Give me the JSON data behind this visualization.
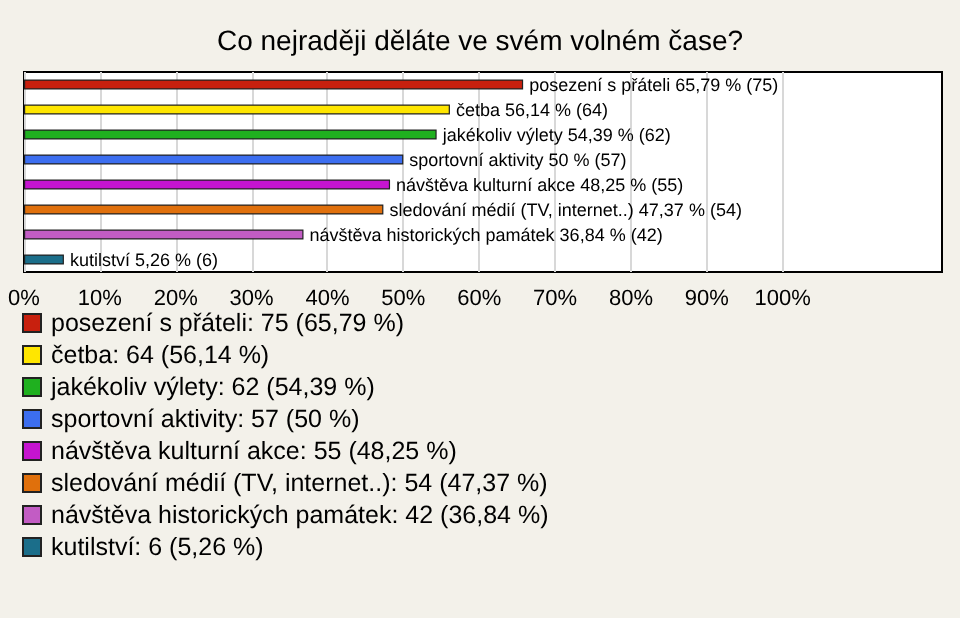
{
  "chart_data": {
    "type": "bar",
    "orientation": "horizontal",
    "stacked": true,
    "title": "Co nejraději děláte ve svém volném čase?",
    "categories": [
      null,
      null,
      null,
      null,
      null,
      null,
      null,
      null
    ],
    "series": [
      {
        "name": "posezení s přáteli: 75 (65,79 %)",
        "color": "#c8200e",
        "values": [
          65.79,
          null,
          null,
          null,
          null,
          null,
          null,
          null
        ],
        "value_labels": [
          "posezení s přáteli 65,79 % (75)",
          null,
          null,
          null,
          null,
          null,
          null,
          null
        ]
      },
      {
        "name": "četba: 64 (56,14 %)",
        "color": "#ffe600",
        "values": [
          null,
          56.14,
          null,
          null,
          null,
          null,
          null,
          null
        ],
        "value_labels": [
          null,
          "četba 56,14 % (64)",
          null,
          null,
          null,
          null,
          null,
          null
        ]
      },
      {
        "name": "jakékoliv výlety: 62 (54,39 %)",
        "color": "#1fb01f",
        "values": [
          null,
          null,
          54.39,
          null,
          null,
          null,
          null,
          null
        ],
        "value_labels": [
          null,
          null,
          "jakékoliv výlety 54,39 % (62)",
          null,
          null,
          null,
          null,
          null
        ]
      },
      {
        "name": "sportovní aktivity: 57 (50 %)",
        "color": "#3c6ef0",
        "values": [
          null,
          null,
          null,
          50,
          null,
          null,
          null,
          null
        ],
        "value_labels": [
          null,
          null,
          null,
          "sportovní aktivity 50 % (57)",
          null,
          null,
          null,
          null
        ]
      },
      {
        "name": "návštěva kulturní akce: 55 (48,25 %)",
        "color": "#c514d0",
        "values": [
          null,
          null,
          null,
          null,
          48.25,
          null,
          null,
          null
        ],
        "value_labels": [
          null,
          null,
          null,
          null,
          "návštěva kulturní akce 48,25 % (55)",
          null,
          null,
          null
        ]
      },
      {
        "name": "sledování médií (TV, internet..): 54 (47,37 %)",
        "color": "#e0700c",
        "values": [
          null,
          null,
          null,
          null,
          null,
          47.37,
          null,
          null
        ],
        "value_labels": [
          null,
          null,
          null,
          null,
          null,
          "sledování médií (TV, internet..) 47,37 % (54)",
          null,
          null
        ]
      },
      {
        "name": "návštěva historických památek: 42 (36,84 %)",
        "color": "#c25cc4",
        "values": [
          null,
          null,
          null,
          null,
          null,
          null,
          36.84,
          null
        ],
        "value_labels": [
          null,
          null,
          null,
          null,
          null,
          null,
          "návštěva historických památek 36,84 % (42)",
          null
        ]
      },
      {
        "name": "kutilství: 6 (5,26 %)",
        "color": "#1b6e8a",
        "values": [
          null,
          null,
          null,
          null,
          null,
          null,
          null,
          5.26
        ],
        "value_labels": [
          null,
          null,
          null,
          null,
          null,
          null,
          null,
          "kutilství 5,26 % (6)"
        ]
      }
    ],
    "xlim": [
      0,
      121
    ],
    "xticks": [
      {
        "value": 0,
        "label": "0%"
      },
      {
        "value": 10,
        "label": "10%"
      },
      {
        "value": 20,
        "label": "20%"
      },
      {
        "value": 30,
        "label": "30%"
      },
      {
        "value": 40,
        "label": "40%"
      },
      {
        "value": 50,
        "label": "50%"
      },
      {
        "value": 60,
        "label": "60%"
      },
      {
        "value": 70,
        "label": "70%"
      },
      {
        "value": 80,
        "label": "80%"
      },
      {
        "value": 90,
        "label": "90%"
      },
      {
        "value": 100,
        "label": "100%"
      }
    ],
    "tick_labels": "x",
    "grid": "x",
    "legend": "bottom"
  }
}
